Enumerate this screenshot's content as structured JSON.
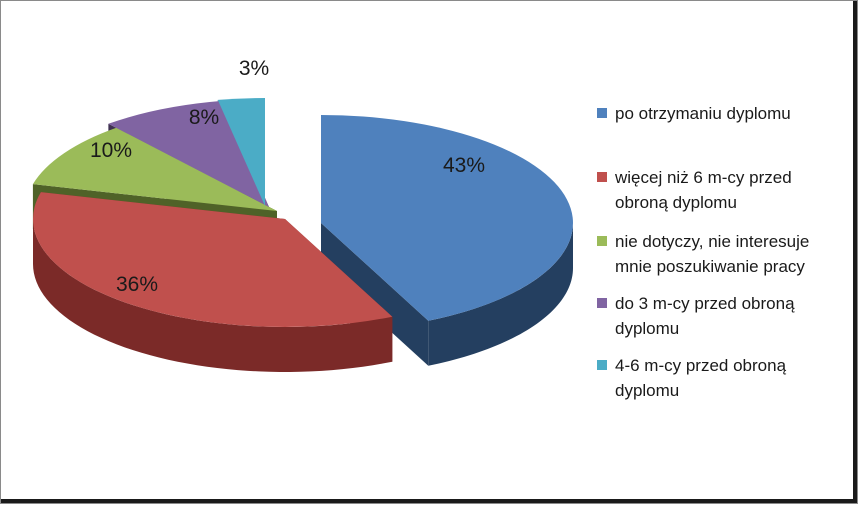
{
  "chart_data": {
    "type": "pie",
    "style": "3d-exploded",
    "slices": [
      {
        "label": "po otrzymaniu dyplomu",
        "value": 43,
        "display": "43%",
        "color": "#4F81BD",
        "side_color": "#243F60"
      },
      {
        "label": "więcej niż 6 m-cy przed obroną dyplomu",
        "value": 36,
        "display": "36%",
        "color": "#C0504D",
        "side_color": "#7B2A28"
      },
      {
        "label": "nie dotyczy, nie interesuje mnie poszukiwanie pracy",
        "value": 10,
        "display": "10%",
        "color": "#9BBB59",
        "side_color": "#4F6228"
      },
      {
        "label": "do 3 m-cy przed obroną dyplomu",
        "value": 8,
        "display": "8%",
        "color": "#8064A2",
        "side_color": "#3F3151"
      },
      {
        "label": "4-6 m-cy przed obroną dyplomu",
        "value": 3,
        "display": "3%",
        "color": "#4BACC6",
        "side_color": "#215968"
      }
    ],
    "legend_position": "right"
  }
}
